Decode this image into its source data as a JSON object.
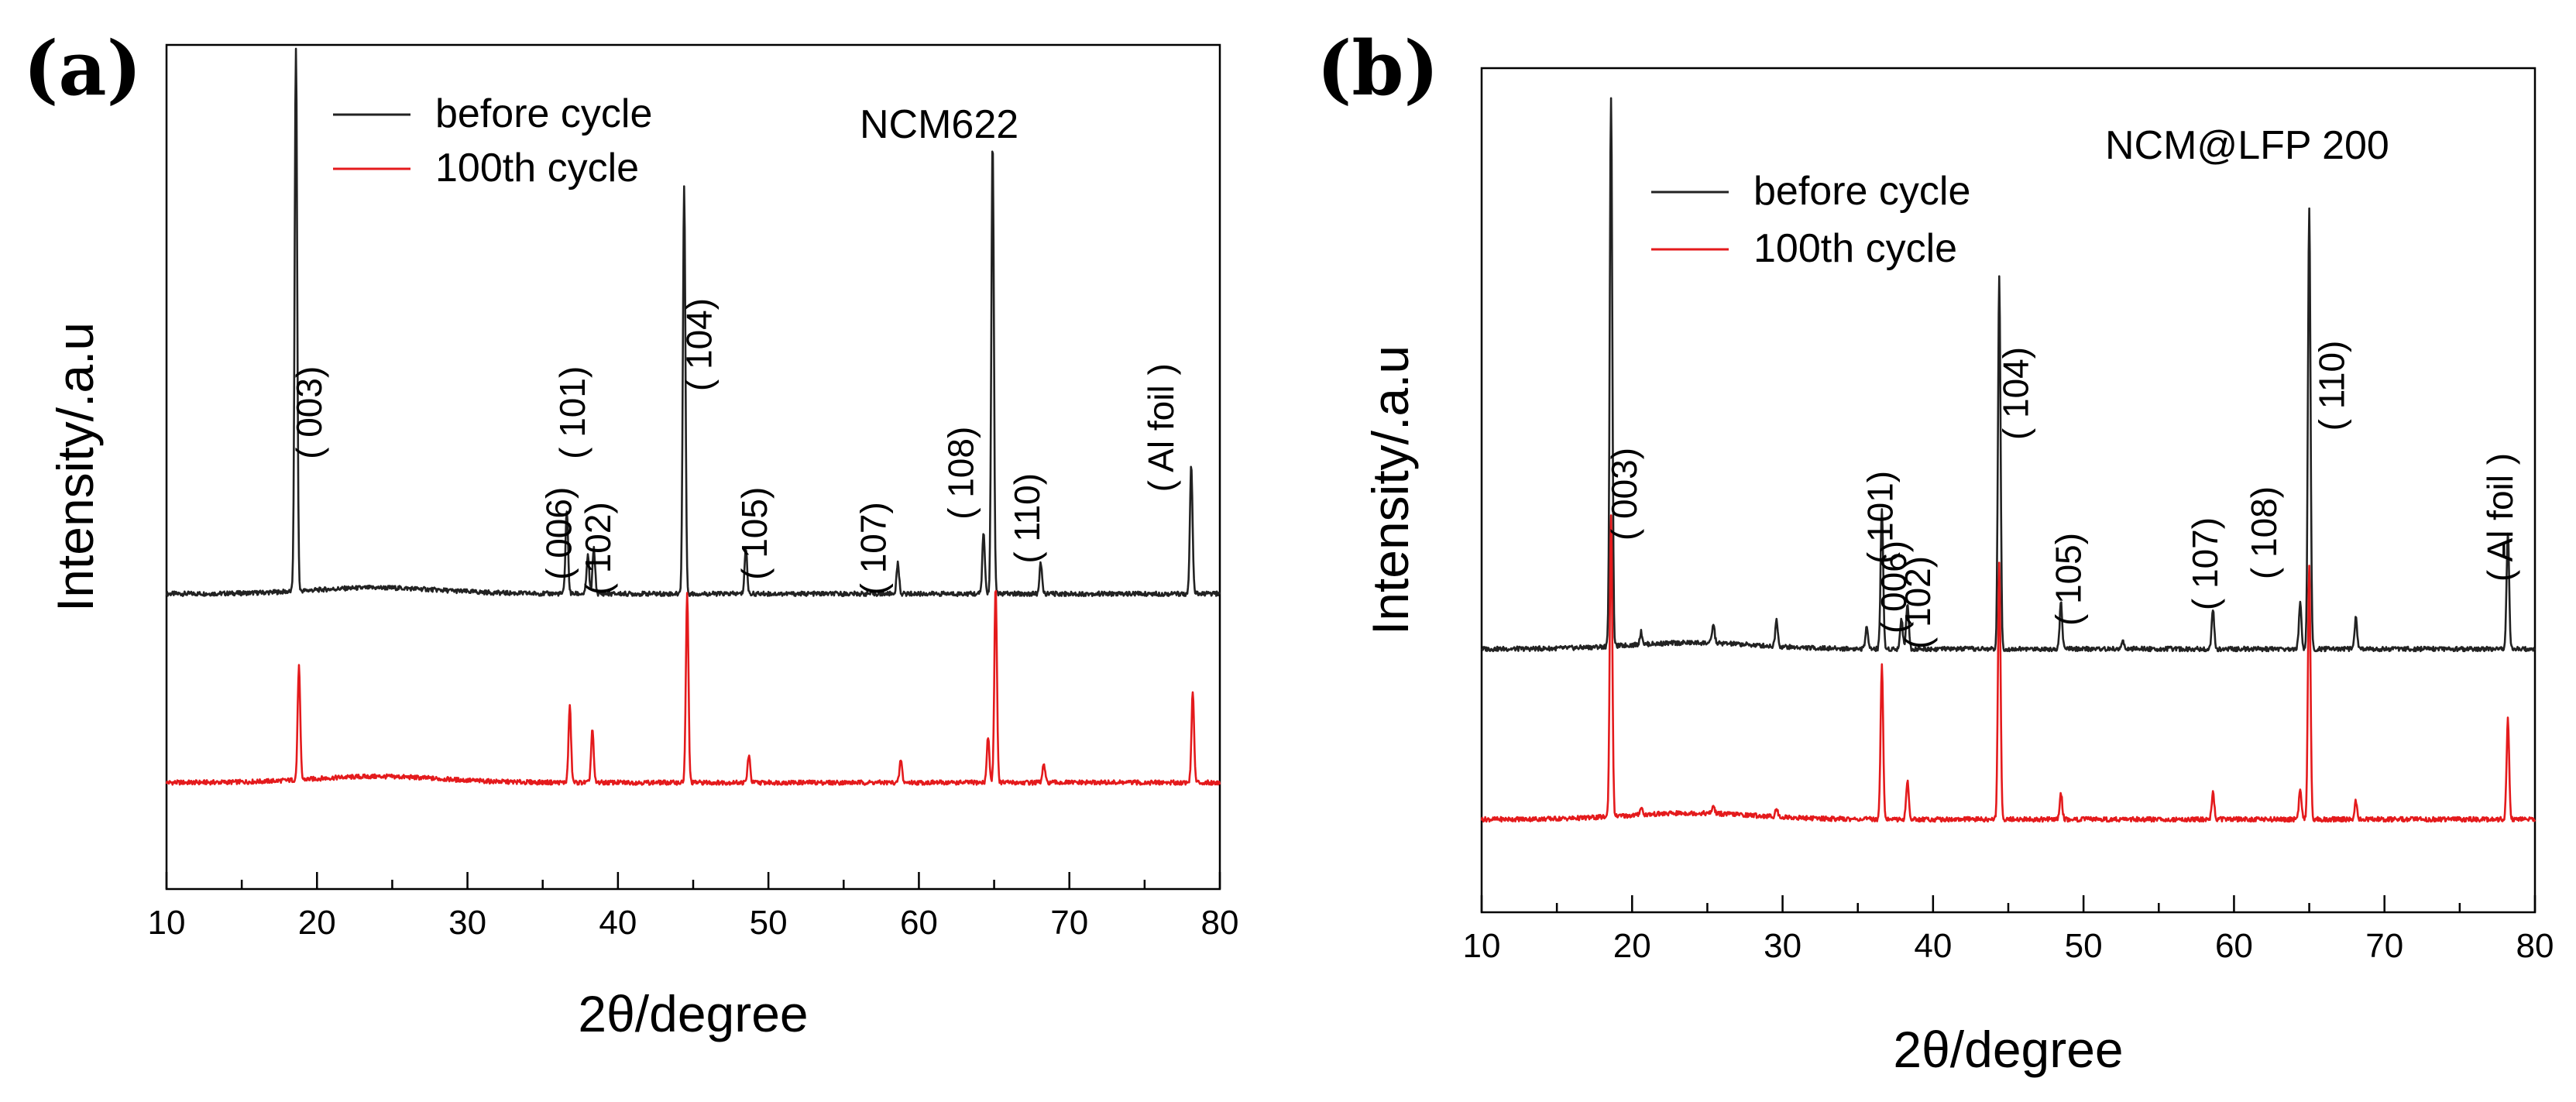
{
  "chart_data": [
    {
      "type": "line",
      "panel_label": "(a)",
      "sample_label": "NCM622",
      "xlabel": "2θ/degree",
      "ylabel": "Intensity/.a.u",
      "xlim": [
        10,
        80
      ],
      "x_ticks": [
        10,
        20,
        30,
        40,
        50,
        60,
        70,
        80
      ],
      "y_ticks_labeled": false,
      "grid": false,
      "legend_position": "top-left",
      "series": [
        {
          "name": "before cycle",
          "color": "#222222",
          "baseline": 1.75,
          "peaks": [
            {
              "x": 18.6,
              "height": 3.6
            },
            {
              "x": 36.6,
              "height": 0.55
            },
            {
              "x": 38.0,
              "height": 0.25
            },
            {
              "x": 38.4,
              "height": 0.3
            },
            {
              "x": 44.4,
              "height": 2.7
            },
            {
              "x": 48.5,
              "height": 0.3
            },
            {
              "x": 58.6,
              "height": 0.2
            },
            {
              "x": 64.3,
              "height": 0.4
            },
            {
              "x": 64.9,
              "height": 3.0
            },
            {
              "x": 68.1,
              "height": 0.2
            },
            {
              "x": 78.1,
              "height": 0.85
            }
          ]
        },
        {
          "name": "100th cycle",
          "color": "#e41a1c",
          "baseline": 0.5,
          "peaks": [
            {
              "x": 18.8,
              "height": 0.75
            },
            {
              "x": 36.8,
              "height": 0.5
            },
            {
              "x": 38.3,
              "height": 0.35
            },
            {
              "x": 44.6,
              "height": 1.25
            },
            {
              "x": 48.7,
              "height": 0.18
            },
            {
              "x": 58.8,
              "height": 0.15
            },
            {
              "x": 64.6,
              "height": 0.3
            },
            {
              "x": 65.1,
              "height": 1.3
            },
            {
              "x": 68.3,
              "height": 0.12
            },
            {
              "x": 78.2,
              "height": 0.6
            }
          ]
        }
      ],
      "peak_labels": [
        {
          "text": "( 003)",
          "x": 20.3,
          "level": 2.95
        },
        {
          "text": "( 101)",
          "x": 37.8,
          "level": 2.95
        },
        {
          "text": "( 006)",
          "x": 36.9,
          "level": 2.15
        },
        {
          "text": "( 102)",
          "x": 39.5,
          "level": 2.05
        },
        {
          "text": "( 104)",
          "x": 46.2,
          "level": 3.4
        },
        {
          "text": "( 105)",
          "x": 49.9,
          "level": 2.15
        },
        {
          "text": "( 107)",
          "x": 57.8,
          "level": 2.05
        },
        {
          "text": "( 108)",
          "x": 63.6,
          "level": 2.55
        },
        {
          "text": "( 110)",
          "x": 68.0,
          "level": 2.25
        },
        {
          "text": "( Al foil )",
          "x": 76.9,
          "level": 2.85
        }
      ],
      "legend": [
        {
          "label": "before cycle",
          "color": "#222222"
        },
        {
          "label": "100th cycle",
          "color": "#e41a1c"
        }
      ]
    },
    {
      "type": "line",
      "panel_label": "(b)",
      "sample_label": "NCM@LFP 200",
      "xlabel": "2θ/degree",
      "ylabel": "Intensity/.a.u",
      "xlim": [
        10,
        80
      ],
      "x_ticks": [
        10,
        20,
        30,
        40,
        50,
        60,
        70,
        80
      ],
      "y_ticks_labeled": false,
      "grid": false,
      "legend_position": "top-left",
      "series": [
        {
          "name": "before cycle",
          "color": "#222222",
          "baseline": 1.55,
          "peaks": [
            {
              "x": 18.6,
              "height": 3.55
            },
            {
              "x": 20.6,
              "height": 0.08
            },
            {
              "x": 25.4,
              "height": 0.12
            },
            {
              "x": 29.6,
              "height": 0.17
            },
            {
              "x": 35.6,
              "height": 0.15
            },
            {
              "x": 36.6,
              "height": 0.9
            },
            {
              "x": 37.9,
              "height": 0.2
            },
            {
              "x": 38.3,
              "height": 0.3
            },
            {
              "x": 44.4,
              "height": 2.4
            },
            {
              "x": 48.5,
              "height": 0.3
            },
            {
              "x": 52.6,
              "height": 0.05
            },
            {
              "x": 58.6,
              "height": 0.25
            },
            {
              "x": 64.4,
              "height": 0.3
            },
            {
              "x": 65.0,
              "height": 2.85
            },
            {
              "x": 68.1,
              "height": 0.2
            },
            {
              "x": 78.2,
              "height": 0.75
            }
          ]
        },
        {
          "name": "100th cycle",
          "color": "#e41a1c",
          "baseline": 0.45,
          "peaks": [
            {
              "x": 18.6,
              "height": 1.95
            },
            {
              "x": 20.6,
              "height": 0.05
            },
            {
              "x": 25.4,
              "height": 0.05
            },
            {
              "x": 29.6,
              "height": 0.05
            },
            {
              "x": 36.6,
              "height": 1.0
            },
            {
              "x": 38.3,
              "height": 0.25
            },
            {
              "x": 44.4,
              "height": 1.65
            },
            {
              "x": 48.5,
              "height": 0.17
            },
            {
              "x": 58.6,
              "height": 0.17
            },
            {
              "x": 64.4,
              "height": 0.2
            },
            {
              "x": 65.0,
              "height": 1.65
            },
            {
              "x": 68.1,
              "height": 0.12
            },
            {
              "x": 78.2,
              "height": 0.65
            }
          ]
        }
      ],
      "peak_labels": [
        {
          "text": "( 003)",
          "x": 20.3,
          "level": 2.55
        },
        {
          "text": "( 101)",
          "x": 37.3,
          "level": 2.4
        },
        {
          "text": "( 006)",
          "x": 38.2,
          "level": 1.95
        },
        {
          "text": "( 102)",
          "x": 39.8,
          "level": 1.85
        },
        {
          "text": "( 104)",
          "x": 46.3,
          "level": 3.2
        },
        {
          "text": "( 105)",
          "x": 49.8,
          "level": 2.0
        },
        {
          "text": "( 107)",
          "x": 58.9,
          "level": 2.1
        },
        {
          "text": "( 108)",
          "x": 62.8,
          "level": 2.3
        },
        {
          "text": "( 110)",
          "x": 67.3,
          "level": 3.25
        },
        {
          "text": "( Al foil )",
          "x": 78.5,
          "level": 2.4
        }
      ],
      "legend": [
        {
          "label": "before cycle",
          "color": "#222222"
        },
        {
          "label": "100th cycle",
          "color": "#e41a1c"
        }
      ]
    }
  ]
}
